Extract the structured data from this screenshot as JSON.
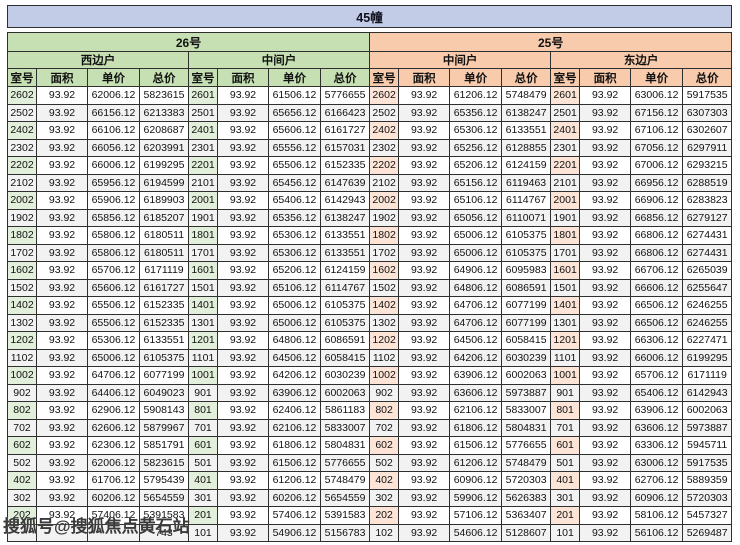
{
  "banner": {
    "title": "45幢"
  },
  "colors": {
    "banner_bg": "#c2cce6",
    "green_header": "#c6e0b4",
    "green_tint": "#e2efda",
    "orange_header": "#f8cbad",
    "orange_tint": "#fce4d6",
    "alt_row": "#f2f2f2",
    "border": "#2f2f2f"
  },
  "table": {
    "buildings": [
      {
        "label": "26号"
      },
      {
        "label": "25号"
      }
    ],
    "unit_headers": [
      "西边户",
      "中间户",
      "中间户",
      "东边户"
    ],
    "column_headers": [
      "室号",
      "面积",
      "单价",
      "总价"
    ],
    "rows": [
      {
        "groups": [
          [
            "2602",
            "93.92",
            "62006.12",
            "5823615"
          ],
          [
            "2601",
            "93.92",
            "61506.12",
            "5776655"
          ],
          [
            "2602",
            "93.92",
            "61206.12",
            "5748479"
          ],
          [
            "2601",
            "93.92",
            "63006.12",
            "5917535"
          ]
        ]
      },
      {
        "groups": [
          [
            "2502",
            "93.92",
            "66156.12",
            "6213383"
          ],
          [
            "2501",
            "93.92",
            "65656.12",
            "6166423"
          ],
          [
            "2502",
            "93.92",
            "65356.12",
            "6138247"
          ],
          [
            "2501",
            "93.92",
            "67156.12",
            "6307303"
          ]
        ]
      },
      {
        "groups": [
          [
            "2402",
            "93.92",
            "66106.12",
            "6208687"
          ],
          [
            "2401",
            "93.92",
            "65606.12",
            "6161727"
          ],
          [
            "2402",
            "93.92",
            "65306.12",
            "6133551"
          ],
          [
            "2401",
            "93.92",
            "67106.12",
            "6302607"
          ]
        ]
      },
      {
        "groups": [
          [
            "2302",
            "93.92",
            "66056.12",
            "6203991"
          ],
          [
            "2301",
            "93.92",
            "65556.12",
            "6157031"
          ],
          [
            "2302",
            "93.92",
            "65256.12",
            "6128855"
          ],
          [
            "2301",
            "93.92",
            "67056.12",
            "6297911"
          ]
        ]
      },
      {
        "groups": [
          [
            "2202",
            "93.92",
            "66006.12",
            "6199295"
          ],
          [
            "2201",
            "93.92",
            "65506.12",
            "6152335"
          ],
          [
            "2202",
            "93.92",
            "65206.12",
            "6124159"
          ],
          [
            "2201",
            "93.92",
            "67006.12",
            "6293215"
          ]
        ]
      },
      {
        "groups": [
          [
            "2102",
            "93.92",
            "65956.12",
            "6194599"
          ],
          [
            "2101",
            "93.92",
            "65456.12",
            "6147639"
          ],
          [
            "2102",
            "93.92",
            "65156.12",
            "6119463"
          ],
          [
            "2101",
            "93.92",
            "66956.12",
            "6288519"
          ]
        ]
      },
      {
        "groups": [
          [
            "2002",
            "93.92",
            "65906.12",
            "6189903"
          ],
          [
            "2001",
            "93.92",
            "65406.12",
            "6142943"
          ],
          [
            "2002",
            "93.92",
            "65106.12",
            "6114767"
          ],
          [
            "2001",
            "93.92",
            "66906.12",
            "6283823"
          ]
        ]
      },
      {
        "groups": [
          [
            "1902",
            "93.92",
            "65856.12",
            "6185207"
          ],
          [
            "1901",
            "93.92",
            "65356.12",
            "6138247"
          ],
          [
            "1902",
            "93.92",
            "65056.12",
            "6110071"
          ],
          [
            "1901",
            "93.92",
            "66856.12",
            "6279127"
          ]
        ]
      },
      {
        "groups": [
          [
            "1802",
            "93.92",
            "65806.12",
            "6180511"
          ],
          [
            "1801",
            "93.92",
            "65306.12",
            "6133551"
          ],
          [
            "1802",
            "93.92",
            "65006.12",
            "6105375"
          ],
          [
            "1801",
            "93.92",
            "66806.12",
            "6274431"
          ]
        ]
      },
      {
        "groups": [
          [
            "1702",
            "93.92",
            "65806.12",
            "6180511"
          ],
          [
            "1701",
            "93.92",
            "65306.12",
            "6133551"
          ],
          [
            "1702",
            "93.92",
            "65006.12",
            "6105375"
          ],
          [
            "1701",
            "93.92",
            "66806.12",
            "6274431"
          ]
        ]
      },
      {
        "groups": [
          [
            "1602",
            "93.92",
            "65706.12",
            "6171119"
          ],
          [
            "1601",
            "93.92",
            "65206.12",
            "6124159"
          ],
          [
            "1602",
            "93.92",
            "64906.12",
            "6095983"
          ],
          [
            "1601",
            "93.92",
            "66706.12",
            "6265039"
          ]
        ]
      },
      {
        "groups": [
          [
            "1502",
            "93.92",
            "65606.12",
            "6161727"
          ],
          [
            "1501",
            "93.92",
            "65106.12",
            "6114767"
          ],
          [
            "1502",
            "93.92",
            "64806.12",
            "6086591"
          ],
          [
            "1501",
            "93.92",
            "66606.12",
            "6255647"
          ]
        ]
      },
      {
        "groups": [
          [
            "1402",
            "93.92",
            "65506.12",
            "6152335"
          ],
          [
            "1401",
            "93.92",
            "65006.12",
            "6105375"
          ],
          [
            "1402",
            "93.92",
            "64706.12",
            "6077199"
          ],
          [
            "1401",
            "93.92",
            "66506.12",
            "6246255"
          ]
        ]
      },
      {
        "groups": [
          [
            "1302",
            "93.92",
            "65506.12",
            "6152335"
          ],
          [
            "1301",
            "93.92",
            "65006.12",
            "6105375"
          ],
          [
            "1302",
            "93.92",
            "64706.12",
            "6077199"
          ],
          [
            "1301",
            "93.92",
            "66506.12",
            "6246255"
          ]
        ]
      },
      {
        "groups": [
          [
            "1202",
            "93.92",
            "65306.12",
            "6133551"
          ],
          [
            "1201",
            "93.92",
            "64806.12",
            "6086591"
          ],
          [
            "1202",
            "93.92",
            "64506.12",
            "6058415"
          ],
          [
            "1201",
            "93.92",
            "66306.12",
            "6227471"
          ]
        ]
      },
      {
        "groups": [
          [
            "1102",
            "93.92",
            "65006.12",
            "6105375"
          ],
          [
            "1101",
            "93.92",
            "64506.12",
            "6058415"
          ],
          [
            "1102",
            "93.92",
            "64206.12",
            "6030239"
          ],
          [
            "1101",
            "93.92",
            "66006.12",
            "6199295"
          ]
        ]
      },
      {
        "groups": [
          [
            "1002",
            "93.92",
            "64706.12",
            "6077199"
          ],
          [
            "1001",
            "93.92",
            "64206.12",
            "6030239"
          ],
          [
            "1002",
            "93.92",
            "63906.12",
            "6002063"
          ],
          [
            "1001",
            "93.92",
            "65706.12",
            "6171119"
          ]
        ]
      },
      {
        "groups": [
          [
            "902",
            "93.92",
            "64406.12",
            "6049023"
          ],
          [
            "901",
            "93.92",
            "63906.12",
            "6002063"
          ],
          [
            "902",
            "93.92",
            "63606.12",
            "5973887"
          ],
          [
            "901",
            "93.92",
            "65406.12",
            "6142943"
          ]
        ]
      },
      {
        "groups": [
          [
            "802",
            "93.92",
            "62906.12",
            "5908143"
          ],
          [
            "801",
            "93.92",
            "62406.12",
            "5861183"
          ],
          [
            "802",
            "93.92",
            "62106.12",
            "5833007"
          ],
          [
            "801",
            "93.92",
            "63906.12",
            "6002063"
          ]
        ]
      },
      {
        "groups": [
          [
            "702",
            "93.92",
            "62606.12",
            "5879967"
          ],
          [
            "701",
            "93.92",
            "62106.12",
            "5833007"
          ],
          [
            "702",
            "93.92",
            "61806.12",
            "5804831"
          ],
          [
            "701",
            "93.92",
            "63606.12",
            "5973887"
          ]
        ]
      },
      {
        "groups": [
          [
            "602",
            "93.92",
            "62306.12",
            "5851791"
          ],
          [
            "601",
            "93.92",
            "61806.12",
            "5804831"
          ],
          [
            "602",
            "93.92",
            "61506.12",
            "5776655"
          ],
          [
            "601",
            "93.92",
            "63306.12",
            "5945711"
          ]
        ]
      },
      {
        "groups": [
          [
            "502",
            "93.92",
            "62006.12",
            "5823615"
          ],
          [
            "501",
            "93.92",
            "61506.12",
            "5776655"
          ],
          [
            "502",
            "93.92",
            "61206.12",
            "5748479"
          ],
          [
            "501",
            "93.92",
            "63006.12",
            "5917535"
          ]
        ]
      },
      {
        "groups": [
          [
            "402",
            "93.92",
            "61706.12",
            "5795439"
          ],
          [
            "401",
            "93.92",
            "61206.12",
            "5748479"
          ],
          [
            "402",
            "93.92",
            "60906.12",
            "5720303"
          ],
          [
            "401",
            "93.92",
            "62706.12",
            "5889359"
          ]
        ]
      },
      {
        "groups": [
          [
            "302",
            "93.92",
            "60206.12",
            "5654559"
          ],
          [
            "301",
            "93.92",
            "60206.12",
            "5654559"
          ],
          [
            "302",
            "93.92",
            "59906.12",
            "5626383"
          ],
          [
            "301",
            "93.92",
            "60906.12",
            "5720303"
          ]
        ]
      },
      {
        "groups": [
          [
            "202",
            "93.92",
            "57406.12",
            "5391583"
          ],
          [
            "201",
            "93.92",
            "57406.12",
            "5391583"
          ],
          [
            "202",
            "93.92",
            "57106.12",
            "5363407"
          ],
          [
            "201",
            "93.92",
            "58106.12",
            "5457327"
          ]
        ]
      },
      {
        "groups": [
          [
            "",
            "",
            "",
            "743"
          ],
          [
            "101",
            "93.92",
            "54906.12",
            "5156783"
          ],
          [
            "102",
            "93.92",
            "54606.12",
            "5128607"
          ],
          [
            "101",
            "93.92",
            "56106.12",
            "5269487"
          ]
        ]
      }
    ]
  },
  "watermark": {
    "text": "搜狐号@搜狐焦点黄石站"
  }
}
